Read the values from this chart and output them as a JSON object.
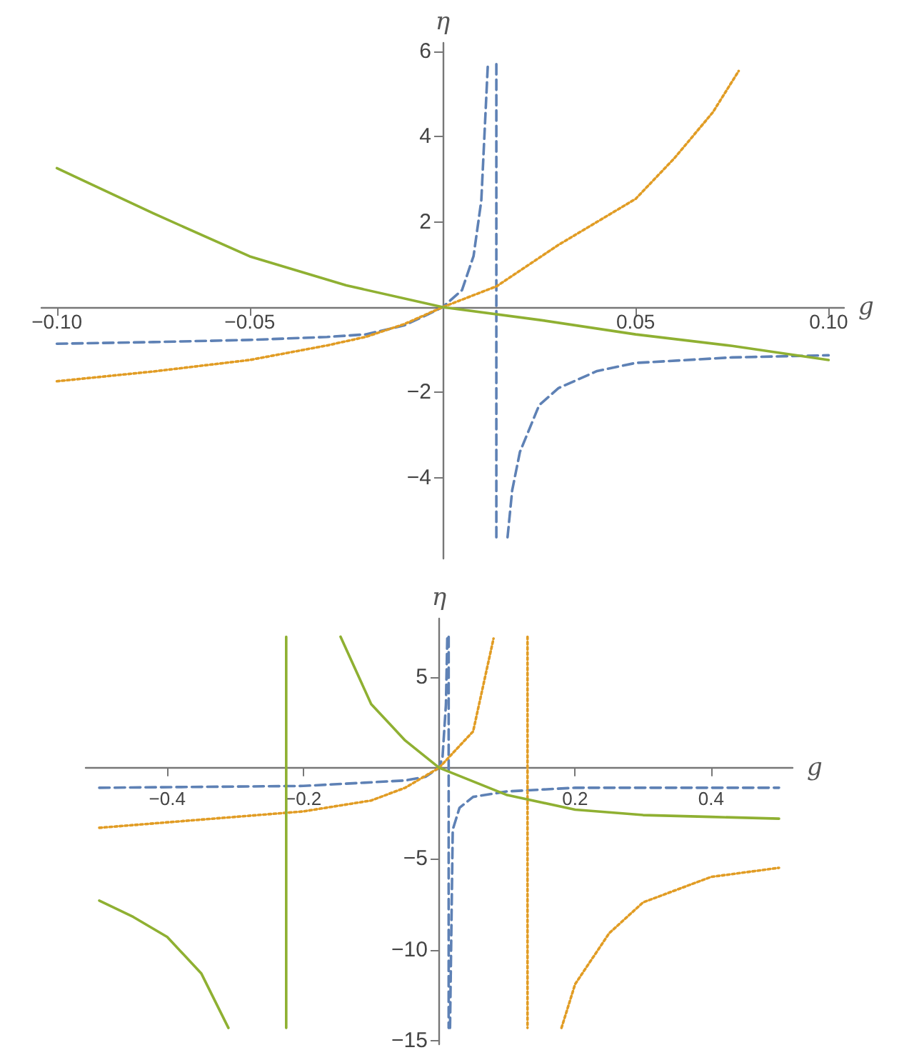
{
  "chart_data": [
    {
      "type": "line",
      "xlabel": "g",
      "ylabel": "η",
      "xlim": [
        -0.104,
        0.104
      ],
      "ylim": [
        -5.9,
        6.2
      ],
      "xticks": [
        {
          "value": -0.1,
          "label": "−0.10"
        },
        {
          "value": -0.05,
          "label": "−0.05"
        },
        {
          "value": 0.05,
          "label": "0.05"
        },
        {
          "value": 0.1,
          "label": "0.10"
        }
      ],
      "yticks": [
        {
          "value": -4,
          "label": "−4"
        },
        {
          "value": -2,
          "label": "−2"
        },
        {
          "value": 2,
          "label": "2"
        },
        {
          "value": 4,
          "label": "4"
        },
        {
          "value": 6,
          "label": "6"
        }
      ],
      "grid": false,
      "marker": "none",
      "series": [
        {
          "color": "#5e81b5",
          "line_style": "dashed",
          "x": [
            -0.1,
            -0.075,
            -0.05,
            -0.03,
            -0.02,
            -0.01,
            -0.005,
            0,
            0.005,
            0.008,
            0.01,
            0.0117,
            0.0128,
            0.0139,
            0.0139,
            0.0148,
            0.0168,
            0.018,
            0.02,
            0.025,
            0.03,
            0.04,
            0.05,
            0.075,
            0.1
          ],
          "values": [
            -0.86,
            -0.82,
            -0.77,
            -0.7,
            -0.64,
            -0.43,
            -0.22,
            0,
            0.4,
            1.2,
            2.5,
            5.7,
            null,
            5.7,
            -5.4,
            null,
            -5.4,
            -4.3,
            -3.4,
            -2.3,
            -1.9,
            -1.5,
            -1.31,
            -1.18,
            -1.13
          ]
        },
        {
          "color": "#e19c24",
          "line_style": "dotted",
          "x": [
            -0.1,
            -0.075,
            -0.05,
            -0.03,
            -0.02,
            -0.01,
            0,
            0.014,
            0.03,
            0.05,
            0.06,
            0.07,
            0.0767
          ],
          "values": [
            -1.74,
            -1.51,
            -1.24,
            -0.9,
            -0.7,
            -0.4,
            0,
            0.49,
            1.46,
            2.54,
            3.49,
            4.57,
            5.54
          ]
        },
        {
          "color": "#8fb032",
          "line_style": "solid",
          "x": [
            -0.1,
            -0.075,
            -0.05,
            -0.025,
            0,
            0.025,
            0.05,
            0.075,
            0.1
          ],
          "values": [
            3.26,
            2.2,
            1.19,
            0.51,
            0,
            -0.3,
            -0.64,
            -0.91,
            -1.24
          ]
        }
      ]
    },
    {
      "type": "line",
      "xlabel": "g",
      "ylabel": "η",
      "xlim": [
        -0.52,
        0.52
      ],
      "ylim": [
        -15.2,
        8.2
      ],
      "xticks": [
        {
          "value": -0.4,
          "label": "−0.4"
        },
        {
          "value": -0.2,
          "label": "−0.2"
        },
        {
          "value": 0.2,
          "label": "0.2"
        },
        {
          "value": 0.4,
          "label": "0.4"
        }
      ],
      "yticks": [
        {
          "value": -15,
          "label": "−15"
        },
        {
          "value": -10,
          "label": "−10"
        },
        {
          "value": -5,
          "label": "−5"
        },
        {
          "value": 5,
          "label": "5"
        }
      ],
      "grid": false,
      "marker": "none",
      "series": [
        {
          "color": "#5e81b5",
          "line_style": "dashed",
          "x": [
            -0.5,
            -0.2,
            -0.05,
            -0.02,
            0,
            0.005,
            0.01,
            0.012,
            0.013,
            0.014,
            0.014,
            0.015,
            0.016,
            0.02,
            0.03,
            0.05,
            0.1,
            0.2,
            0.5
          ],
          "values": [
            -1.1,
            -1.0,
            -0.7,
            -0.5,
            0,
            0.6,
            3.5,
            7.2,
            null,
            7.2,
            -14.3,
            null,
            -14.3,
            -3.4,
            -2.2,
            -1.6,
            -1.3,
            -1.1,
            -1.1
          ]
        },
        {
          "color": "#e19c24",
          "line_style": "dotted",
          "x": [
            -0.5,
            -0.3,
            -0.2,
            -0.1,
            -0.05,
            0,
            0.05,
            0.08,
            0.1,
            0.13,
            0.13,
            0.15,
            0.18,
            0.2,
            0.25,
            0.3,
            0.4,
            0.5
          ],
          "values": [
            -3.3,
            -2.7,
            -2.4,
            -1.8,
            -1.1,
            0,
            2.0,
            7.1,
            null,
            7.2,
            -14.3,
            null,
            -14.3,
            -11.9,
            -9.1,
            -7.4,
            -6.0,
            -5.5
          ]
        },
        {
          "color": "#8fb032",
          "line_style": "solid",
          "x": [
            -0.5,
            -0.45,
            -0.4,
            -0.35,
            -0.31,
            -0.27,
            -0.225,
            -0.225,
            -0.18,
            -0.145,
            -0.1,
            -0.05,
            0,
            0.1,
            0.2,
            0.3,
            0.4,
            0.5
          ],
          "values": [
            -7.3,
            -8.2,
            -9.3,
            -11.3,
            -14.3,
            null,
            7.2,
            -14.3,
            null,
            7.2,
            3.5,
            1.5,
            0,
            -1.5,
            -2.3,
            -2.6,
            -2.7,
            -2.8
          ]
        }
      ]
    }
  ]
}
